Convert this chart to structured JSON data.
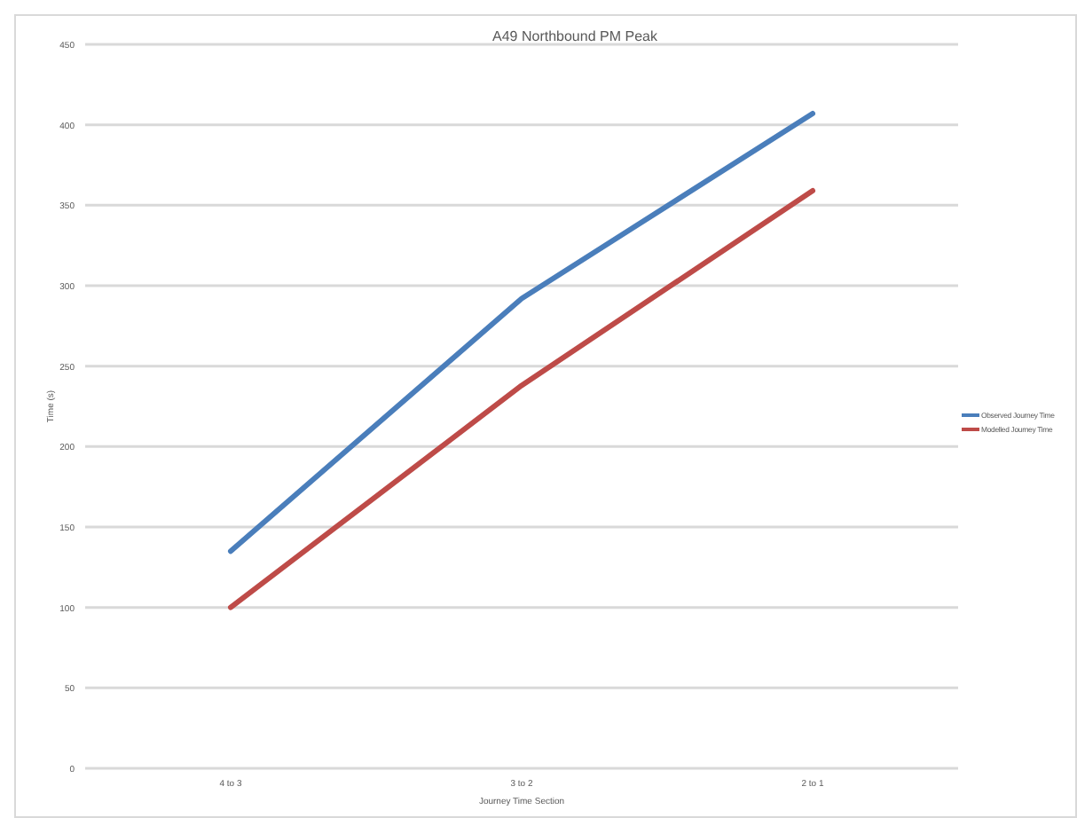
{
  "chart_data": {
    "type": "line",
    "title": "A49 Northbound   PM Peak",
    "xlabel": "Journey Time Section",
    "ylabel": "Time (s)",
    "categories": [
      "4 to 3",
      "3 to 2",
      "2 to 1"
    ],
    "series": [
      {
        "name": "Observed Journey Time",
        "color": "#4a7ebb",
        "values": [
          135,
          292,
          407
        ]
      },
      {
        "name": "Modelled Journey Time",
        "color": "#be4b48",
        "values": [
          100,
          238,
          359
        ]
      }
    ],
    "ylim": [
      0,
      450
    ],
    "yticks": [
      0,
      50,
      100,
      150,
      200,
      250,
      300,
      350,
      400,
      450
    ],
    "grid": "y",
    "legend": "right",
    "marker": "none",
    "line_style": "solid"
  }
}
